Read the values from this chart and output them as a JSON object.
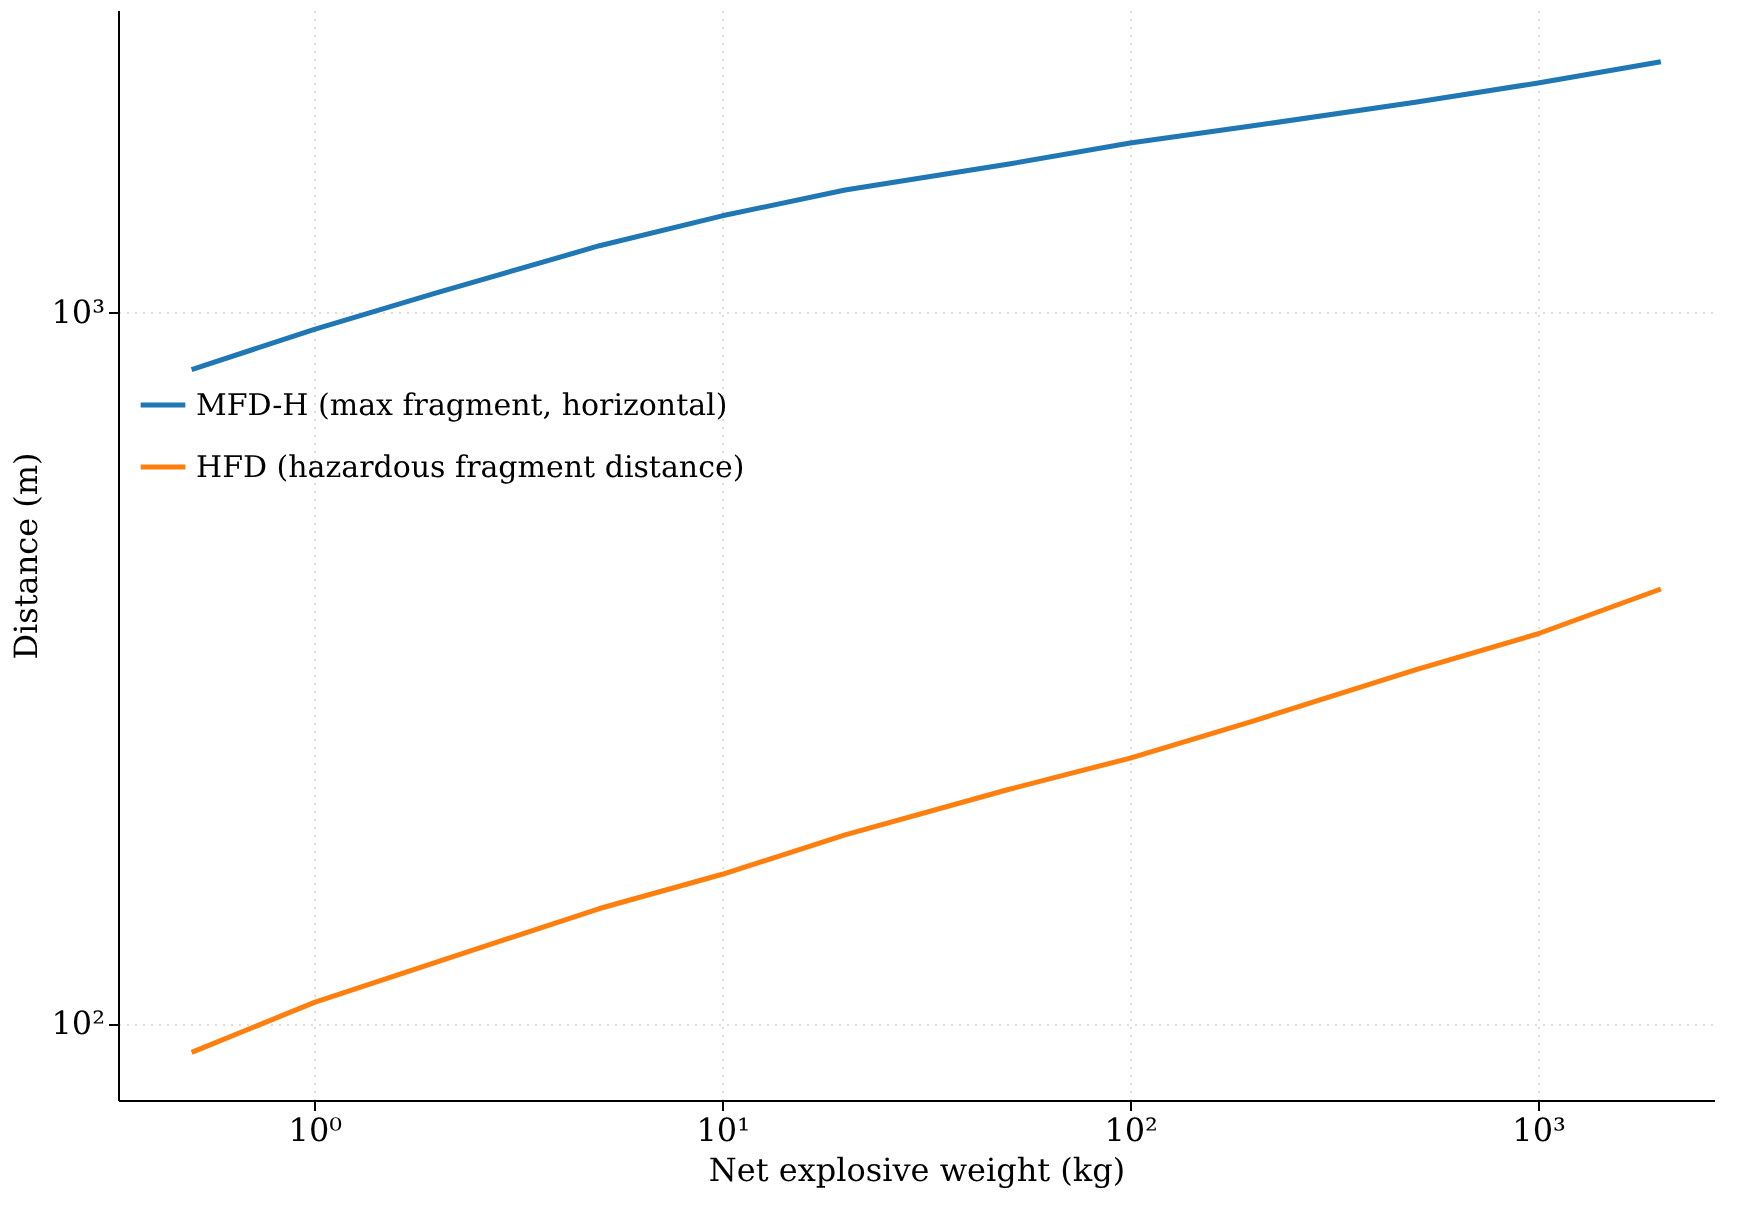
{
  "chart_data": {
    "type": "line",
    "xlabel": "Net explosive weight (kg)",
    "ylabel": "Distance (m)",
    "log": "xy",
    "grid": true,
    "legend": "left",
    "line_style": "solid",
    "marker": "none",
    "x": [
      0.5,
      1,
      2,
      5,
      10,
      20,
      50,
      100,
      200,
      500,
      1000,
      2000
    ],
    "series": [
      {
        "name": "MFD-H (max fragment, horizontal)",
        "color": "#1f77b4",
        "values": [
          830,
          946,
          1065,
          1240,
          1366,
          1485,
          1614,
          1729,
          1828,
          1973,
          2100,
          2250
        ]
      },
      {
        "name": "HFD (hazardous fragment distance)",
        "color": "#ff7f0e",
        "values": [
          91,
          107,
          122,
          145,
          162,
          184,
          213,
          236,
          266,
          314,
          353,
          408
        ]
      }
    ],
    "xlim": [
      0.33,
      2700
    ],
    "ylim": [
      78,
      2660
    ],
    "xticks": [
      {
        "value": 1,
        "label": "10⁰"
      },
      {
        "value": 10,
        "label": "10¹"
      },
      {
        "value": 100,
        "label": "10²"
      },
      {
        "value": 1000,
        "label": "10³"
      }
    ],
    "yticks": [
      {
        "value": 100,
        "label": "10²"
      },
      {
        "value": 1000,
        "label": "10³"
      }
    ]
  }
}
